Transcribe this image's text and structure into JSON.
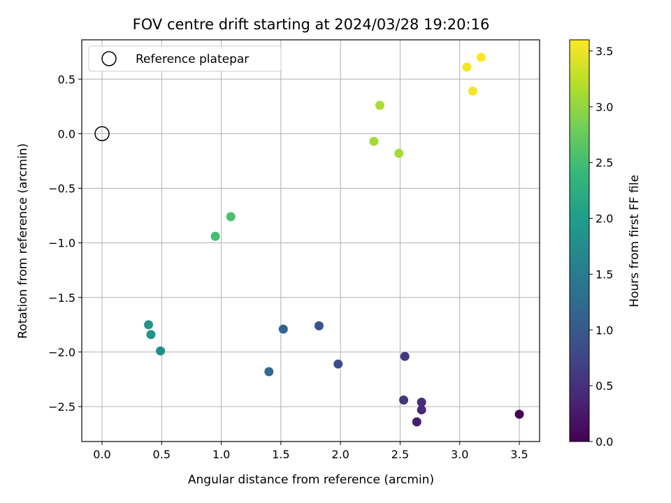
{
  "chart_data": {
    "type": "scatter",
    "title": "FOV centre drift starting at 2024/03/28 19:20:16",
    "xlabel": "Angular distance from reference (arcmin)",
    "ylabel": "Rotation from reference (arcmin)",
    "xlim": [
      -0.17,
      3.67
    ],
    "ylim": [
      -2.82,
      0.86
    ],
    "xticks": [
      0.0,
      0.5,
      1.0,
      1.5,
      2.0,
      2.5,
      3.0,
      3.5
    ],
    "xtick_labels": [
      "0.0",
      "0.5",
      "1.0",
      "1.5",
      "2.0",
      "2.5",
      "3.0",
      "3.5"
    ],
    "yticks": [
      0.5,
      0.0,
      -0.5,
      -1.0,
      -1.5,
      -2.0,
      -2.5
    ],
    "ytick_labels": [
      "0.5",
      "0.0",
      "−0.5",
      "−1.0",
      "−1.5",
      "−2.0",
      "−2.5"
    ],
    "grid": true,
    "legend": {
      "placement": "top-left",
      "entries": [
        "Reference platepar"
      ]
    },
    "reference_point": {
      "x": 0.0,
      "y": 0.0
    },
    "colorbar": {
      "label": "Hours from first FF file",
      "range": [
        0.0,
        3.6
      ],
      "ticks": [
        0.0,
        0.5,
        1.0,
        1.5,
        2.0,
        2.5,
        3.0,
        3.5
      ],
      "tick_labels": [
        "0.0",
        "0.5",
        "1.0",
        "1.5",
        "2.0",
        "2.5",
        "3.0",
        "3.5"
      ],
      "colormap": "viridis"
    },
    "points": [
      {
        "x": 3.5,
        "y": -2.57,
        "hours": 0.0
      },
      {
        "x": 2.64,
        "y": -2.64,
        "hours": 0.3
      },
      {
        "x": 2.68,
        "y": -2.53,
        "hours": 0.4
      },
      {
        "x": 2.68,
        "y": -2.46,
        "hours": 0.45
      },
      {
        "x": 2.53,
        "y": -2.44,
        "hours": 0.55
      },
      {
        "x": 2.54,
        "y": -2.04,
        "hours": 0.6
      },
      {
        "x": 1.98,
        "y": -2.11,
        "hours": 0.85
      },
      {
        "x": 1.82,
        "y": -1.76,
        "hours": 0.95
      },
      {
        "x": 1.52,
        "y": -1.79,
        "hours": 1.15
      },
      {
        "x": 1.4,
        "y": -2.18,
        "hours": 1.25
      },
      {
        "x": 0.49,
        "y": -1.99,
        "hours": 1.75
      },
      {
        "x": 0.41,
        "y": -1.84,
        "hours": 1.85
      },
      {
        "x": 0.39,
        "y": -1.75,
        "hours": 1.9
      },
      {
        "x": 0.95,
        "y": -0.94,
        "hours": 2.5
      },
      {
        "x": 1.08,
        "y": -0.76,
        "hours": 2.55
      },
      {
        "x": 2.28,
        "y": -0.07,
        "hours": 3.1
      },
      {
        "x": 2.49,
        "y": -0.18,
        "hours": 3.12
      },
      {
        "x": 2.33,
        "y": 0.26,
        "hours": 3.15
      },
      {
        "x": 3.11,
        "y": 0.39,
        "hours": 3.55
      },
      {
        "x": 3.06,
        "y": 0.61,
        "hours": 3.55
      },
      {
        "x": 3.18,
        "y": 0.7,
        "hours": 3.6
      }
    ]
  }
}
